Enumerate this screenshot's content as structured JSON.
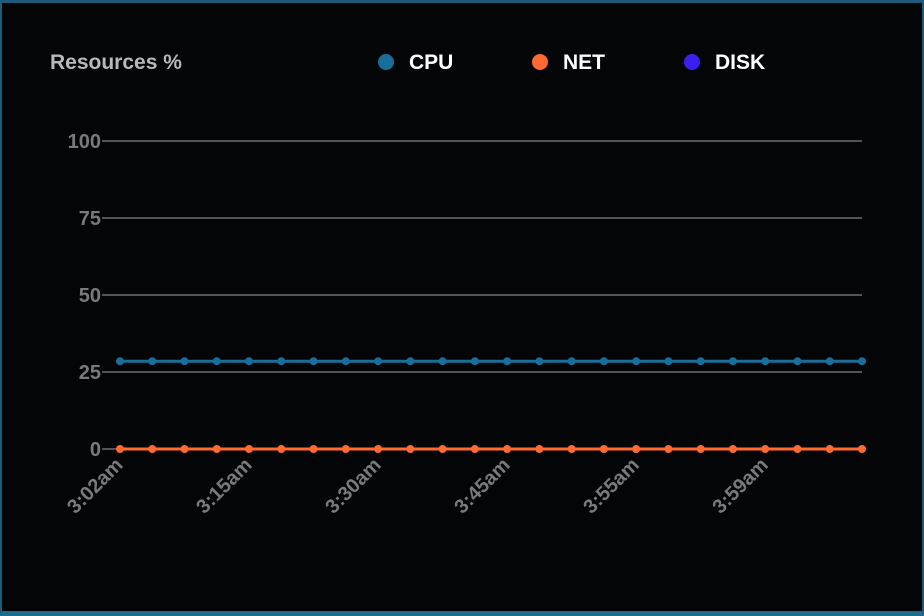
{
  "chart_data": {
    "type": "line",
    "title": "Resources %",
    "xlabel": "",
    "ylabel": "",
    "ylim": [
      0,
      100
    ],
    "yticks": [
      0,
      25,
      50,
      75,
      100
    ],
    "grid": true,
    "legend_position": "top",
    "x_tick_labels": [
      {
        "index": 0,
        "label": "3:02am"
      },
      {
        "index": 4,
        "label": "3:15am"
      },
      {
        "index": 8,
        "label": "3:30am"
      },
      {
        "index": 12,
        "label": "3:45am"
      },
      {
        "index": 16,
        "label": "3:55am"
      },
      {
        "index": 20,
        "label": "3:59am"
      }
    ],
    "point_count": 24,
    "series": [
      {
        "name": "CPU",
        "color": "#1a6e9a",
        "values": [
          28.5,
          28.5,
          28.5,
          28.5,
          28.5,
          28.5,
          28.5,
          28.5,
          28.5,
          28.5,
          28.5,
          28.5,
          28.5,
          28.5,
          28.5,
          28.5,
          28.5,
          28.5,
          28.5,
          28.5,
          28.5,
          28.5,
          28.5,
          28.5
        ]
      },
      {
        "name": "NET",
        "color": "#fe6a30",
        "values": [
          0,
          0,
          0,
          0,
          0,
          0,
          0,
          0,
          0,
          0,
          0,
          0,
          0,
          0,
          0,
          0,
          0,
          0,
          0,
          0,
          0,
          0,
          0,
          0
        ]
      },
      {
        "name": "DISK",
        "color": "#3a1ff0",
        "values": []
      }
    ]
  }
}
